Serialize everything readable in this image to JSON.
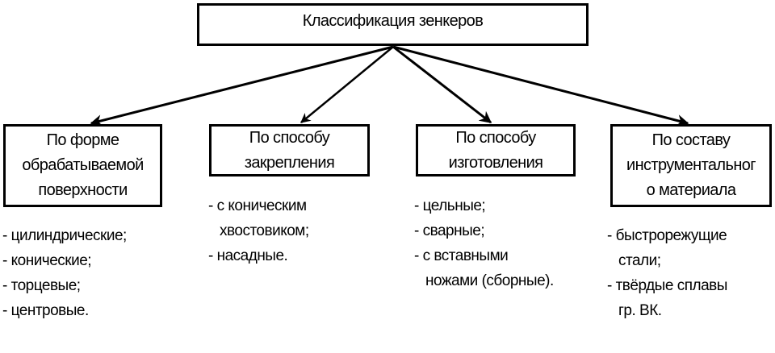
{
  "title": "Классификация зенкеров",
  "categories": [
    {
      "label_lines": [
        "По форме",
        "обрабатываемой",
        "поверхности"
      ],
      "items": [
        [
          "- цилиндрические;"
        ],
        [
          "- конические;"
        ],
        [
          "- торцевые;"
        ],
        [
          "- центровые."
        ]
      ]
    },
    {
      "label_lines": [
        "По способу",
        "закрепления"
      ],
      "items": [
        [
          "- с коническим",
          "хвостовиком;"
        ],
        [
          "- насадные."
        ]
      ]
    },
    {
      "label_lines": [
        "По способу",
        "изготовления"
      ],
      "items": [
        [
          "- цельные;"
        ],
        [
          "- сварные;"
        ],
        [
          "- с вставными",
          "ножами (сборные)."
        ]
      ]
    },
    {
      "label_lines": [
        "По составу",
        "инструментальног",
        "о материала"
      ],
      "items": [
        [
          "- быстрорежущие",
          "стали;"
        ],
        [
          "- твёрдые сплавы",
          "гр. ВК."
        ]
      ]
    }
  ]
}
